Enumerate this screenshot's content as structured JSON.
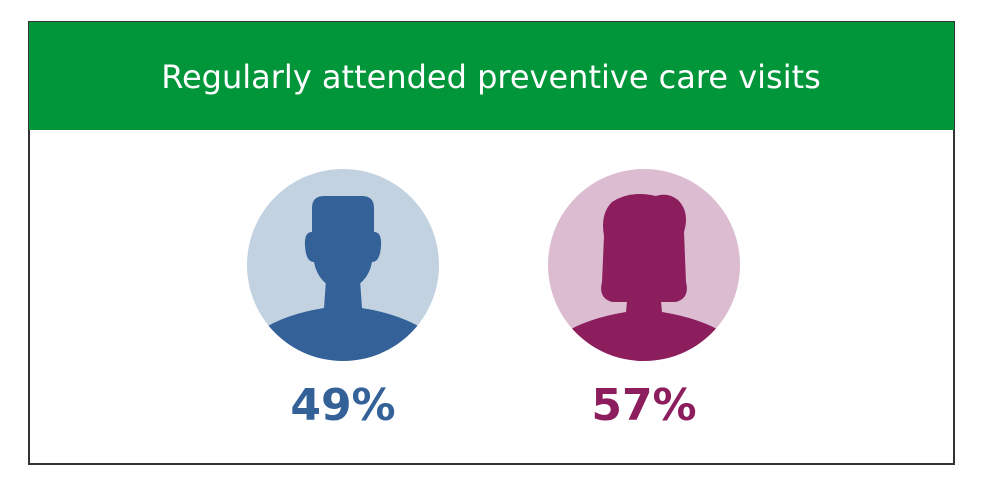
{
  "header": {
    "title": "Regularly attended preventive care visits"
  },
  "figures": [
    {
      "label": "49%"
    },
    {
      "label": "57%"
    }
  ]
}
